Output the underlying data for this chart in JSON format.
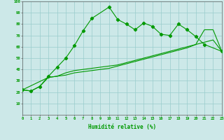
{
  "xlabel": "Humidité relative (%)",
  "bg_color": "#cce8e8",
  "grid_color": "#99cccc",
  "line_color": "#009900",
  "spiky_x": [
    0,
    1,
    2,
    3,
    4,
    5,
    6,
    7,
    8,
    10,
    11,
    12,
    13,
    14,
    15,
    16,
    17,
    18,
    19,
    20,
    21,
    23
  ],
  "spiky_y": [
    22,
    21,
    25,
    34,
    42,
    50,
    61,
    74,
    85,
    95,
    84,
    80,
    75,
    81,
    78,
    71,
    70,
    80,
    75,
    69,
    62,
    56
  ],
  "line2_x": [
    0,
    3,
    4,
    5,
    6,
    7,
    8,
    9,
    10,
    11,
    12,
    13,
    14,
    15,
    16,
    17,
    18,
    19,
    20,
    21,
    22,
    23
  ],
  "line2_y": [
    22,
    33,
    34,
    37,
    39,
    40,
    41,
    42,
    43,
    44,
    46,
    48,
    50,
    52,
    54,
    56,
    58,
    60,
    62,
    75,
    75,
    56
  ],
  "line3_x": [
    0,
    1,
    2,
    3,
    4,
    5,
    6,
    7,
    8,
    9,
    10,
    11,
    12,
    13,
    14,
    15,
    16,
    17,
    18,
    19,
    20,
    21,
    22,
    23
  ],
  "line3_y": [
    22,
    21,
    25,
    33,
    34,
    35,
    37,
    38,
    39,
    40,
    41,
    43,
    45,
    47,
    49,
    51,
    53,
    55,
    57,
    59,
    62,
    64,
    66,
    56
  ],
  "ylim": [
    0,
    100
  ],
  "xlim": [
    0,
    23
  ],
  "yticks": [
    10,
    20,
    30,
    40,
    50,
    60,
    70,
    80,
    90,
    100
  ],
  "xticks": [
    0,
    1,
    2,
    3,
    4,
    5,
    6,
    7,
    8,
    9,
    10,
    11,
    12,
    13,
    14,
    15,
    16,
    17,
    18,
    19,
    20,
    21,
    22,
    23
  ]
}
